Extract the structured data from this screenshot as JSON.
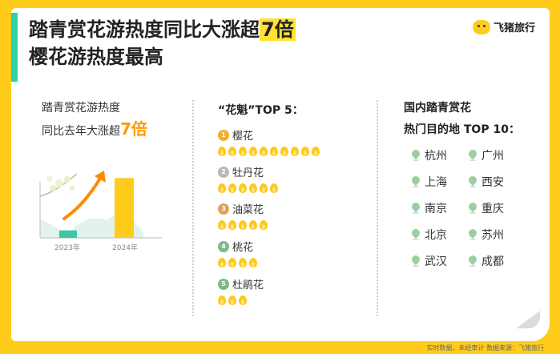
{
  "title": {
    "line1_prefix": "踏青赏花游热度同比大涨超",
    "line1_highlight": "7倍",
    "line2": "樱花游热度最高"
  },
  "brand": {
    "name": "飞猪旅行"
  },
  "col1": {
    "line1": "踏青赏花游热度",
    "line2_prefix": "同比去年大涨超",
    "line2_big": "7倍"
  },
  "col2": {
    "header": "“花魁”TOP 5："
  },
  "col3": {
    "header_line1": "国内踏青赏花",
    "header_line2": "热门目的地 TOP 10："
  },
  "footer": "实时数据，未经审计    数据来源：飞猪旅行",
  "colors": {
    "background": "#FFCC1C",
    "accent": "#FF9A00",
    "teal": "#2FD0A6",
    "bar2024": "#FFCC1C",
    "bar2023": "#3CC7A6",
    "flame": "#FFC81E"
  },
  "chart_data": [
    {
      "type": "bar",
      "categories": [
        "2023年",
        "2024年"
      ],
      "values": [
        1,
        8
      ],
      "ylim": [
        0,
        9
      ],
      "grid": false,
      "annotation": "7倍"
    },
    {
      "type": "table",
      "title": "“花魁”TOP 5：",
      "rows": [
        {
          "rank": 1,
          "name": "樱花",
          "heat": 10,
          "medal": "gold"
        },
        {
          "rank": 2,
          "name": "牡丹花",
          "heat": 6,
          "medal": "silver"
        },
        {
          "rank": 3,
          "name": "油菜花",
          "heat": 5,
          "medal": "bronze"
        },
        {
          "rank": 4,
          "name": "桃花",
          "heat": 4,
          "medal": "green"
        },
        {
          "rank": 5,
          "name": "杜鹃花",
          "heat": 3,
          "medal": "green"
        }
      ]
    },
    {
      "type": "table",
      "title": "国内踏青赏花热门目的地 TOP 10：",
      "cities": [
        "杭州",
        "广州",
        "上海",
        "西安",
        "南京",
        "重庆",
        "北京",
        "苏州",
        "武汉",
        "成都"
      ]
    }
  ]
}
